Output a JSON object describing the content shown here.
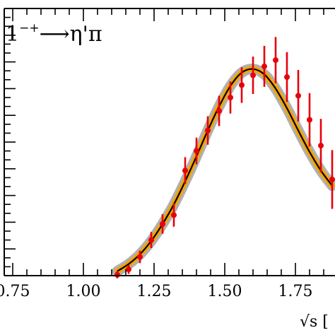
{
  "chart_data": {
    "type": "line",
    "title_base": "1",
    "title_superscript": "−+",
    "title_arrow": "⟶",
    "title_rest": "η'π",
    "xlabel": "√s [",
    "ylabel": "",
    "xlim": [
      0.72,
      1.89
    ],
    "ylim": [
      -1.0,
      29.0
    ],
    "x_ticks": [
      0.75,
      1.0,
      1.25,
      1.5,
      1.75
    ],
    "x_tick_labels": [
      "0.75",
      "1.00",
      "1.25",
      "1.50",
      "1.75"
    ],
    "colors": {
      "data": "#e8000b",
      "fit": "#000000",
      "band_inner": "#f5a300",
      "band_outer": "#b0b0b0",
      "axes": "#000000"
    },
    "series": [
      {
        "kind": "points",
        "x": [
          1.12,
          1.16,
          1.2,
          1.24,
          1.28,
          1.32,
          1.36,
          1.4,
          1.44,
          1.48,
          1.52,
          1.56,
          1.6,
          1.64,
          1.68,
          1.72,
          1.76,
          1.8,
          1.84,
          1.88
        ],
        "y": [
          -0.9,
          -0.3,
          1.1,
          3.0,
          4.8,
          5.8,
          10.8,
          13.0,
          15.3,
          17.5,
          19.0,
          20.4,
          21.5,
          22.5,
          23.2,
          21.3,
          19.2,
          16.5,
          13.6,
          9.8
        ],
        "err": [
          0.4,
          0.5,
          0.7,
          0.9,
          1.1,
          1.3,
          1.5,
          1.5,
          1.6,
          1.7,
          1.8,
          2.0,
          2.1,
          2.3,
          2.6,
          2.8,
          2.9,
          3.0,
          3.0,
          3.3
        ]
      },
      {
        "kind": "fit",
        "x": [
          1.12,
          1.16,
          1.2,
          1.24,
          1.28,
          1.32,
          1.36,
          1.4,
          1.44,
          1.48,
          1.52,
          1.56,
          1.6,
          1.64,
          1.68,
          1.72,
          1.76,
          1.8,
          1.84,
          1.88
        ],
        "y": [
          -0.5,
          0.3,
          1.4,
          2.9,
          4.8,
          7.0,
          9.6,
          12.4,
          15.3,
          18.0,
          20.3,
          21.8,
          22.2,
          21.6,
          20.0,
          17.8,
          15.3,
          12.9,
          10.8,
          9.1
        ]
      }
    ]
  }
}
